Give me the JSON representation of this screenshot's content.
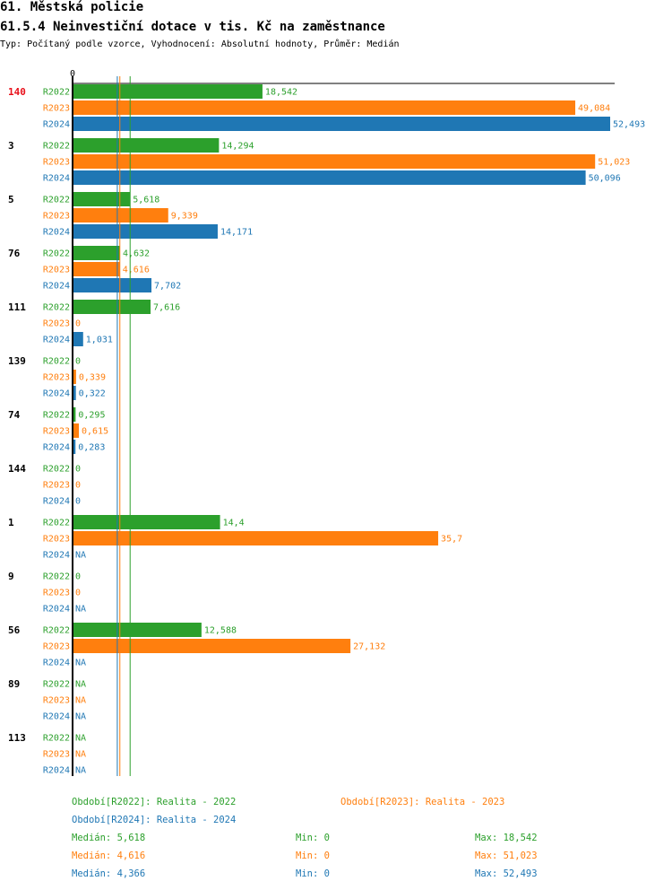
{
  "header": {
    "title": "61. Městská policie",
    "subtitle": "61.5.4 Neinvestiční dotace v tis. Kč na zaměstnance",
    "info": "Typ: Počítaný podle vzorce, Vyhodnocení: Absolutní hodnoty, Průměr: Medián"
  },
  "colors": {
    "R2022": "#2ca02c",
    "R2023": "#ff7f0e",
    "R2024": "#1f77b4",
    "highlight": "#e8101a"
  },
  "chart_data": {
    "type": "bar",
    "orientation": "horizontal",
    "title": "61.5.4 Neinvestiční dotace v tis. Kč na zaměstnance",
    "axis_zero_label": "0",
    "xlim": [
      0,
      52.493
    ],
    "highlight_group": "140",
    "series_names": [
      "R2022",
      "R2023",
      "R2024"
    ],
    "groups": [
      {
        "label": "140",
        "values": [
          18.542,
          49.084,
          52.493
        ],
        "labels": [
          "18,542",
          "49,084",
          "52,493"
        ]
      },
      {
        "label": "3",
        "values": [
          14.294,
          51.023,
          50.096
        ],
        "labels": [
          "14,294",
          "51,023",
          "50,096"
        ]
      },
      {
        "label": "5",
        "values": [
          5.618,
          9.339,
          14.171
        ],
        "labels": [
          "5,618",
          "9,339",
          "14,171"
        ]
      },
      {
        "label": "76",
        "values": [
          4.632,
          4.616,
          7.702
        ],
        "labels": [
          "4,632",
          "4,616",
          "7,702"
        ]
      },
      {
        "label": "111",
        "values": [
          7.616,
          0,
          1.031
        ],
        "labels": [
          "7,616",
          "0",
          "1,031"
        ]
      },
      {
        "label": "139",
        "values": [
          0,
          0.339,
          0.322
        ],
        "labels": [
          "0",
          "0,339",
          "0,322"
        ]
      },
      {
        "label": "74",
        "values": [
          0.295,
          0.615,
          0.283
        ],
        "labels": [
          "0,295",
          "0,615",
          "0,283"
        ]
      },
      {
        "label": "144",
        "values": [
          0,
          0,
          0
        ],
        "labels": [
          "0",
          "0",
          "0"
        ]
      },
      {
        "label": "1",
        "values": [
          14.4,
          35.7,
          null
        ],
        "labels": [
          "14,4",
          "35,7",
          "NA"
        ]
      },
      {
        "label": "9",
        "values": [
          0,
          0,
          null
        ],
        "labels": [
          "0",
          "0",
          "NA"
        ]
      },
      {
        "label": "56",
        "values": [
          12.588,
          27.132,
          null
        ],
        "labels": [
          "12,588",
          "27,132",
          "NA"
        ]
      },
      {
        "label": "89",
        "values": [
          null,
          null,
          null
        ],
        "labels": [
          "NA",
          "NA",
          "NA"
        ]
      },
      {
        "label": "113",
        "values": [
          null,
          null,
          null
        ],
        "labels": [
          "NA",
          "NA",
          "NA"
        ]
      }
    ],
    "median_lines": {
      "R2022": 5.618,
      "R2023": 4.616,
      "R2024": 4.366
    }
  },
  "legend": {
    "r2022": "Období[R2022]: Realita - 2022",
    "r2023": "Období[R2023]: Realita - 2023",
    "r2024": "Období[R2024]: Realita - 2024",
    "stats": [
      {
        "median": "Medián: 5,618",
        "min": "Min: 0",
        "max": "Max: 18,542"
      },
      {
        "median": "Medián: 4,616",
        "min": "Min: 0",
        "max": "Max: 51,023"
      },
      {
        "median": "Medián: 4,366",
        "min": "Min: 0",
        "max": "Max: 52,493"
      }
    ]
  }
}
